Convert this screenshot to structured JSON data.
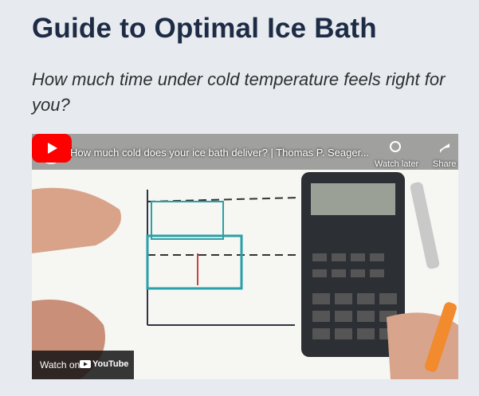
{
  "header": {
    "title": "Guide to Optimal Ice Bath",
    "subtitle": "How much time under cold temperature feels right for you?"
  },
  "video": {
    "title": "How much cold does your ice bath deliver? | Thomas P. Seager...",
    "watch_later": "Watch later",
    "share": "Share",
    "watch_on": "Watch on",
    "platform": "YouTube"
  }
}
